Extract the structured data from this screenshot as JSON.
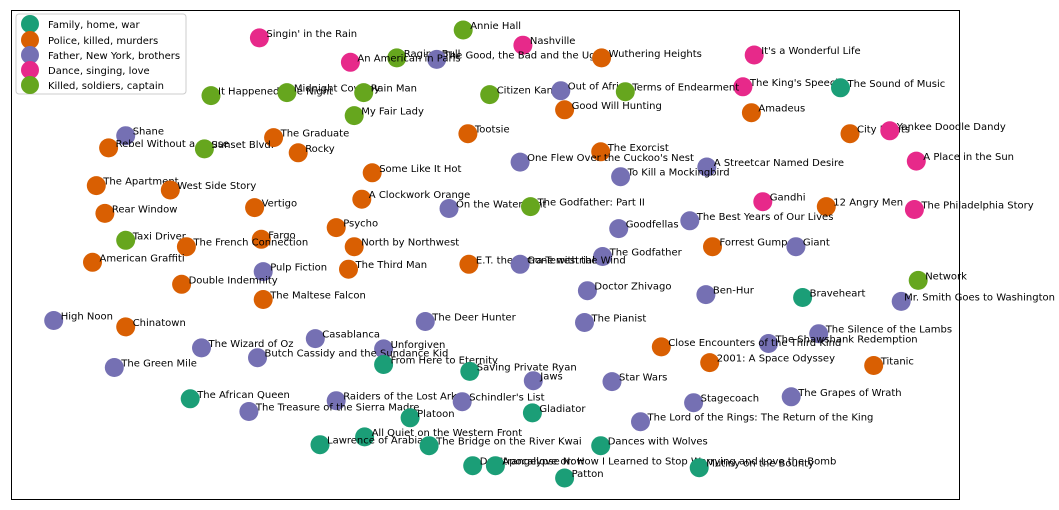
{
  "chart_data": {
    "type": "scatter",
    "title": "",
    "xlabel": "",
    "ylabel": "",
    "xlim": [
      0,
      100
    ],
    "ylim": [
      0,
      100
    ],
    "axes_visible": false,
    "grid": false,
    "legend_position": "top-left",
    "series": [
      {
        "name": "Family, home, war",
        "color": "#1b9e77"
      },
      {
        "name": "Police, killed, murders",
        "color": "#d95f02"
      },
      {
        "name": "Father, New York, brothers",
        "color": "#7570b3"
      },
      {
        "name": "Dance, singing, love",
        "color": "#e7298a"
      },
      {
        "name": "Killed, soldiers, captain",
        "color": "#66a61e"
      }
    ],
    "points": [
      {
        "label": "Annie Hall",
        "series": 4,
        "x": 47.7,
        "y": 95.9
      },
      {
        "label": "Singin' in the Rain",
        "series": 3,
        "x": 26.2,
        "y": 94.3
      },
      {
        "label": "Nashville",
        "series": 3,
        "x": 54.0,
        "y": 92.8
      },
      {
        "label": "Raging Bull",
        "series": 4,
        "x": 40.7,
        "y": 90.2
      },
      {
        "label": "The Good, the Bad and the Ugly",
        "series": 2,
        "x": 44.9,
        "y": 89.9
      },
      {
        "label": "An American in Paris",
        "series": 3,
        "x": 35.8,
        "y": 89.3
      },
      {
        "label": "Wuthering Heights",
        "series": 1,
        "x": 62.3,
        "y": 90.2
      },
      {
        "label": "It's a Wonderful Life",
        "series": 3,
        "x": 78.4,
        "y": 90.8
      },
      {
        "label": "The King's Speech",
        "series": 3,
        "x": 77.2,
        "y": 84.3
      },
      {
        "label": "The Sound of Music",
        "series": 0,
        "x": 87.5,
        "y": 84.1
      },
      {
        "label": "It Happened One Night",
        "series": 4,
        "x": 21.1,
        "y": 82.5
      },
      {
        "label": "Midnight Cowboy",
        "series": 4,
        "x": 29.1,
        "y": 83.1
      },
      {
        "label": "Rain Man",
        "series": 4,
        "x": 37.2,
        "y": 83.1
      },
      {
        "label": "Citizen Kane",
        "series": 4,
        "x": 50.5,
        "y": 82.7
      },
      {
        "label": "Out of Africa",
        "series": 2,
        "x": 58.0,
        "y": 83.5
      },
      {
        "label": "Terms of Endearment",
        "series": 4,
        "x": 64.8,
        "y": 83.3
      },
      {
        "label": "Good Will Hunting",
        "series": 1,
        "x": 58.4,
        "y": 79.6
      },
      {
        "label": "My Fair Lady",
        "series": 4,
        "x": 36.2,
        "y": 78.4
      },
      {
        "label": "Amadeus",
        "series": 1,
        "x": 78.1,
        "y": 79.0
      },
      {
        "label": "Shane",
        "series": 2,
        "x": 12.1,
        "y": 74.3
      },
      {
        "label": "The Graduate",
        "series": 1,
        "x": 27.7,
        "y": 73.9
      },
      {
        "label": "Tootsie",
        "series": 1,
        "x": 48.2,
        "y": 74.7
      },
      {
        "label": "City Lights",
        "series": 1,
        "x": 88.5,
        "y": 74.7
      },
      {
        "label": "Yankee Doodle Dandy",
        "series": 3,
        "x": 92.7,
        "y": 75.3
      },
      {
        "label": "Rebel Without a Cause",
        "series": 1,
        "x": 10.3,
        "y": 71.8
      },
      {
        "label": "Sunset Blvd.",
        "series": 4,
        "x": 20.4,
        "y": 71.6
      },
      {
        "label": "Rocky",
        "series": 1,
        "x": 30.3,
        "y": 70.8
      },
      {
        "label": "The Exorcist",
        "series": 1,
        "x": 62.2,
        "y": 71.0
      },
      {
        "label": "One Flew Over the Cuckoo's Nest",
        "series": 2,
        "x": 53.7,
        "y": 68.9
      },
      {
        "label": "A Streetcar Named Desire",
        "series": 2,
        "x": 73.4,
        "y": 67.9
      },
      {
        "label": "A Place in the Sun",
        "series": 3,
        "x": 95.5,
        "y": 69.1
      },
      {
        "label": "Some Like It Hot",
        "series": 1,
        "x": 38.1,
        "y": 66.7
      },
      {
        "label": "To Kill a Mockingbird",
        "series": 2,
        "x": 64.3,
        "y": 65.9
      },
      {
        "label": "The Apartment",
        "series": 1,
        "x": 9.0,
        "y": 64.1
      },
      {
        "label": "West Side Story",
        "series": 1,
        "x": 16.8,
        "y": 63.2
      },
      {
        "label": "A Clockwork Orange",
        "series": 1,
        "x": 37.0,
        "y": 61.3
      },
      {
        "label": "Vertigo",
        "series": 1,
        "x": 25.7,
        "y": 59.6
      },
      {
        "label": "On the Waterfront",
        "series": 2,
        "x": 46.2,
        "y": 59.4
      },
      {
        "label": "The Godfather: Part II",
        "series": 4,
        "x": 54.8,
        "y": 59.8
      },
      {
        "label": "Gandhi",
        "series": 3,
        "x": 79.3,
        "y": 60.8
      },
      {
        "label": "12 Angry Men",
        "series": 1,
        "x": 86.0,
        "y": 59.8
      },
      {
        "label": "The Philadelphia Story",
        "series": 3,
        "x": 95.3,
        "y": 59.2
      },
      {
        "label": "Rear Window",
        "series": 1,
        "x": 9.9,
        "y": 58.4
      },
      {
        "label": "The Best Years of Our Lives",
        "series": 2,
        "x": 71.6,
        "y": 56.9
      },
      {
        "label": "Psycho",
        "series": 1,
        "x": 34.3,
        "y": 55.5
      },
      {
        "label": "Goodfellas",
        "series": 2,
        "x": 64.1,
        "y": 55.3
      },
      {
        "label": "Taxi Driver",
        "series": 4,
        "x": 12.1,
        "y": 52.9
      },
      {
        "label": "Fargo",
        "series": 1,
        "x": 26.4,
        "y": 53.1
      },
      {
        "label": "The French Connection",
        "series": 1,
        "x": 18.5,
        "y": 51.6
      },
      {
        "label": "North by Northwest",
        "series": 1,
        "x": 36.2,
        "y": 51.6
      },
      {
        "label": "Forrest Gump",
        "series": 1,
        "x": 74.0,
        "y": 51.6
      },
      {
        "label": "Giant",
        "series": 2,
        "x": 82.8,
        "y": 51.6
      },
      {
        "label": "The Godfather",
        "series": 2,
        "x": 62.4,
        "y": 49.6
      },
      {
        "label": "American Graffiti",
        "series": 1,
        "x": 8.6,
        "y": 48.4
      },
      {
        "label": "E.T. the Extra-Terrestrial",
        "series": 1,
        "x": 48.3,
        "y": 48.0
      },
      {
        "label": "Gone with the Wind",
        "series": 2,
        "x": 53.7,
        "y": 48.0
      },
      {
        "label": "The Third Man",
        "series": 1,
        "x": 35.6,
        "y": 47.0
      },
      {
        "label": "Pulp Fiction",
        "series": 2,
        "x": 26.6,
        "y": 46.5
      },
      {
        "label": "Network",
        "series": 4,
        "x": 95.7,
        "y": 44.7
      },
      {
        "label": "Double Indemnity",
        "series": 1,
        "x": 18.0,
        "y": 43.9
      },
      {
        "label": "Doctor Zhivago",
        "series": 2,
        "x": 60.8,
        "y": 42.6
      },
      {
        "label": "Ben-Hur",
        "series": 2,
        "x": 73.3,
        "y": 41.8
      },
      {
        "label": "Braveheart",
        "series": 0,
        "x": 83.5,
        "y": 41.2
      },
      {
        "label": "Mr. Smith Goes to Washington",
        "series": 2,
        "x": 93.9,
        "y": 40.4
      },
      {
        "label": "The Maltese Falcon",
        "series": 1,
        "x": 26.6,
        "y": 40.8
      },
      {
        "label": "High Noon",
        "series": 2,
        "x": 4.5,
        "y": 36.5
      },
      {
        "label": "Chinatown",
        "series": 1,
        "x": 12.1,
        "y": 35.2
      },
      {
        "label": "The Deer Hunter",
        "series": 2,
        "x": 43.7,
        "y": 36.3
      },
      {
        "label": "The Pianist",
        "series": 2,
        "x": 60.5,
        "y": 36.1
      },
      {
        "label": "The Silence of the Lambs",
        "series": 2,
        "x": 85.2,
        "y": 33.8
      },
      {
        "label": "Casablanca",
        "series": 2,
        "x": 32.1,
        "y": 32.8
      },
      {
        "label": "The Shawshank Redemption",
        "series": 2,
        "x": 79.9,
        "y": 31.8
      },
      {
        "label": "The Wizard of Oz",
        "series": 2,
        "x": 20.1,
        "y": 30.9
      },
      {
        "label": "Unforgiven",
        "series": 2,
        "x": 39.3,
        "y": 30.7
      },
      {
        "label": "Close Encounters of the Third Kind",
        "series": 1,
        "x": 68.6,
        "y": 31.1
      },
      {
        "label": "Butch Cassidy and the Sundance Kid",
        "series": 2,
        "x": 26.0,
        "y": 28.9
      },
      {
        "label": "From Here to Eternity",
        "series": 0,
        "x": 39.3,
        "y": 27.5
      },
      {
        "label": "2001: A Space Odyssey",
        "series": 1,
        "x": 73.7,
        "y": 27.9
      },
      {
        "label": "Titanic",
        "series": 1,
        "x": 91.0,
        "y": 27.3
      },
      {
        "label": "The Green Mile",
        "series": 2,
        "x": 10.9,
        "y": 26.9
      },
      {
        "label": "Saving Private Ryan",
        "series": 0,
        "x": 48.4,
        "y": 26.1
      },
      {
        "label": "Jaws",
        "series": 2,
        "x": 55.1,
        "y": 24.2
      },
      {
        "label": "Star Wars",
        "series": 2,
        "x": 63.4,
        "y": 24.0
      },
      {
        "label": "The Grapes of Wrath",
        "series": 2,
        "x": 82.3,
        "y": 20.9
      },
      {
        "label": "The African Queen",
        "series": 0,
        "x": 18.9,
        "y": 20.5
      },
      {
        "label": "Raiders of the Lost Ark",
        "series": 2,
        "x": 34.3,
        "y": 20.1
      },
      {
        "label": "Schindler's List",
        "series": 2,
        "x": 47.6,
        "y": 19.9
      },
      {
        "label": "Stagecoach",
        "series": 2,
        "x": 72.0,
        "y": 19.7
      },
      {
        "label": "The Treasure of the Sierra Madre",
        "series": 2,
        "x": 25.1,
        "y": 17.9
      },
      {
        "label": "Gladiator",
        "series": 0,
        "x": 55.0,
        "y": 17.6
      },
      {
        "label": "Platoon",
        "series": 0,
        "x": 42.1,
        "y": 16.6
      },
      {
        "label": "The Lord of the Rings: The Return of the King",
        "series": 2,
        "x": 66.4,
        "y": 15.8
      },
      {
        "label": "All Quiet on the Western Front",
        "series": 0,
        "x": 37.3,
        "y": 12.7
      },
      {
        "label": "Lawrence of Arabia",
        "series": 0,
        "x": 32.6,
        "y": 11.1
      },
      {
        "label": "The Bridge on the River Kwai",
        "series": 0,
        "x": 44.1,
        "y": 10.9
      },
      {
        "label": "Dances with Wolves",
        "series": 0,
        "x": 62.2,
        "y": 10.9
      },
      {
        "label": "Dr. Strangelove or: How I Learned to Stop Worrying and Love the Bomb",
        "series": 0,
        "x": 48.7,
        "y": 6.8
      },
      {
        "label": "Apocalypse Now",
        "series": 0,
        "x": 51.1,
        "y": 6.8
      },
      {
        "label": "Mutiny on the Bounty",
        "series": 0,
        "x": 72.6,
        "y": 6.4
      },
      {
        "label": "Patton",
        "series": 0,
        "x": 58.4,
        "y": 4.3
      }
    ]
  }
}
